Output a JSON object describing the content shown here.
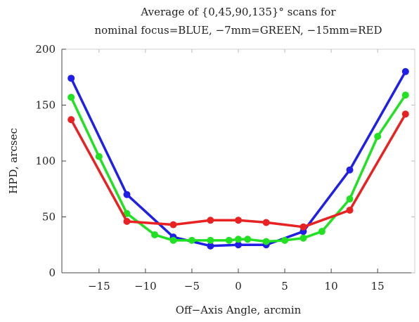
{
  "chart_data": {
    "type": "line",
    "title_lines": [
      "Average of {0,45,90,135}° scans for",
      "nominal focus=BLUE, −7mm=GREEN, −15mm=RED"
    ],
    "xlabel": "Off−Axis Angle, arcmin",
    "ylabel": "HPD, arcsec",
    "xlim": [
      -19,
      19
    ],
    "ylim": [
      0,
      200
    ],
    "x_ticks": [
      -15,
      -10,
      -5,
      0,
      5,
      10,
      15
    ],
    "x_tick_labels": [
      "−15",
      "−10",
      "−5",
      "0",
      "5",
      "10",
      "15"
    ],
    "y_ticks": [
      0,
      50,
      100,
      150,
      200
    ],
    "y_tick_labels": [
      "0",
      "50",
      "100",
      "150",
      "200"
    ],
    "grid": false,
    "series": [
      {
        "color": "#1f1fe8",
        "x": [
          -18,
          -12,
          -7,
          -3,
          0,
          3,
          7,
          12,
          18
        ],
        "y": [
          174,
          70,
          32,
          24,
          25,
          25,
          37,
          92,
          180
        ]
      },
      {
        "color": "#22e022",
        "x": [
          -18,
          -15,
          -12,
          -9,
          -7,
          -5,
          -3,
          -1,
          0,
          1,
          3,
          5,
          7,
          9,
          12,
          15,
          18
        ],
        "y": [
          157,
          104,
          53,
          34,
          29,
          29,
          29,
          29,
          30,
          30,
          28,
          29,
          31,
          37,
          66,
          122,
          159
        ]
      },
      {
        "color": "#e82222",
        "x": [
          -18,
          -12,
          -7,
          -3,
          0,
          3,
          7,
          12,
          18
        ],
        "y": [
          137,
          46,
          43,
          47,
          47,
          45,
          41,
          56,
          142
        ]
      }
    ]
  }
}
